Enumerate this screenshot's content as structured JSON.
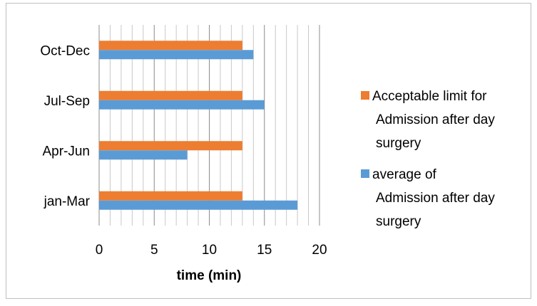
{
  "chart_data": {
    "type": "bar",
    "orientation": "horizontal",
    "categories": [
      "jan-Mar",
      "Apr-Jun",
      "Jul-Sep",
      "Oct-Dec"
    ],
    "series": [
      {
        "name": "Acceptable limit for Admission after day surgery",
        "name_lines": [
          "Acceptable limit for",
          "Admission after day",
          "surgery"
        ],
        "color": "#ED7D31",
        "values": [
          13,
          13,
          13,
          13
        ]
      },
      {
        "name": "average of Admission after day surgery",
        "name_lines": [
          "average of",
          "Admission after day",
          "surgery"
        ],
        "color": "#5B9BD5",
        "values": [
          18,
          8,
          15,
          14
        ]
      }
    ],
    "xlabel": "time (min)",
    "ylabel": "",
    "xlim": [
      0,
      20
    ],
    "x_ticks": [
      0,
      5,
      10,
      15,
      20
    ],
    "minor_step": 1,
    "grid": true,
    "legend_position": "right"
  }
}
